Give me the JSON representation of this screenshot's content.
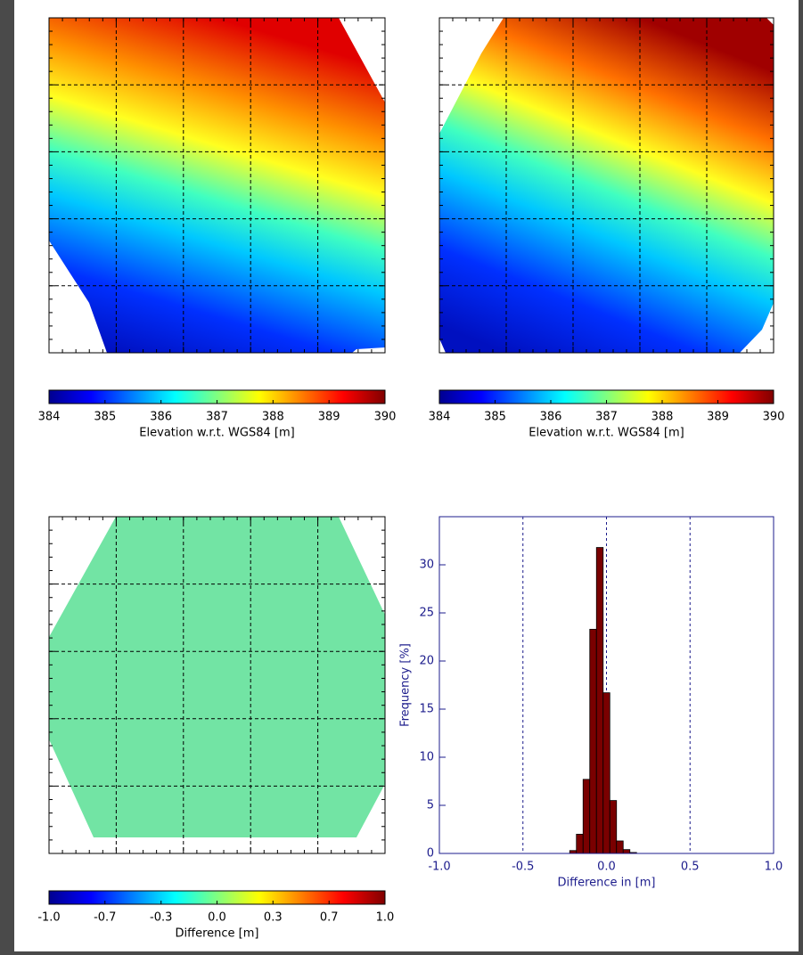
{
  "chart_data": [
    {
      "type": "colorbar",
      "xlabel": "Elevation w.r.t. WGS84 [m]",
      "xlim": [
        384,
        390
      ],
      "xticks": [
        384,
        385,
        386,
        387,
        388,
        389,
        390
      ]
    },
    {
      "type": "colorbar",
      "xlabel": "Elevation w.r.t. WGS84 [m]",
      "xlim": [
        384,
        390
      ],
      "xticks": [
        384,
        385,
        386,
        387,
        388,
        389,
        390
      ]
    },
    {
      "type": "colorbar",
      "xlabel": "Difference [m]",
      "xlim": [
        -1,
        1
      ],
      "xticks": [
        {
          "value": -1,
          "label": "-1.0"
        },
        {
          "value": -0.667,
          "label": "-0.7"
        },
        {
          "value": -0.333,
          "label": "-0.3"
        },
        {
          "value": 0,
          "label": "0.0"
        },
        {
          "value": 0.333,
          "label": "0.3"
        },
        {
          "value": 0.667,
          "label": "0.7"
        },
        {
          "value": 1,
          "label": "1.0"
        }
      ]
    },
    {
      "type": "histogram",
      "xlabel": "Difference in [m]",
      "ylabel": "Frequency [%]",
      "color": "#7a0000",
      "bins": [
        -0.22,
        -0.18,
        -0.14,
        -0.1,
        -0.06,
        -0.02,
        0.02,
        0.06,
        0.1,
        0.14,
        0.18
      ],
      "values": [
        0.3,
        2,
        7.7,
        23.3,
        31.8,
        16.7,
        5.5,
        1.3,
        0.4,
        0.1
      ],
      "xlim": [
        -1,
        1
      ],
      "xticks": [
        {
          "value": -1,
          "label": "-1.0"
        },
        -0.5,
        {
          "value": 0,
          "label": "0.0"
        },
        0.5,
        {
          "value": 1,
          "label": "1.0"
        }
      ],
      "ylim": [
        0,
        35
      ],
      "yticks": [
        0,
        5,
        10,
        15,
        20,
        25,
        30
      ],
      "grid": true
    }
  ]
}
